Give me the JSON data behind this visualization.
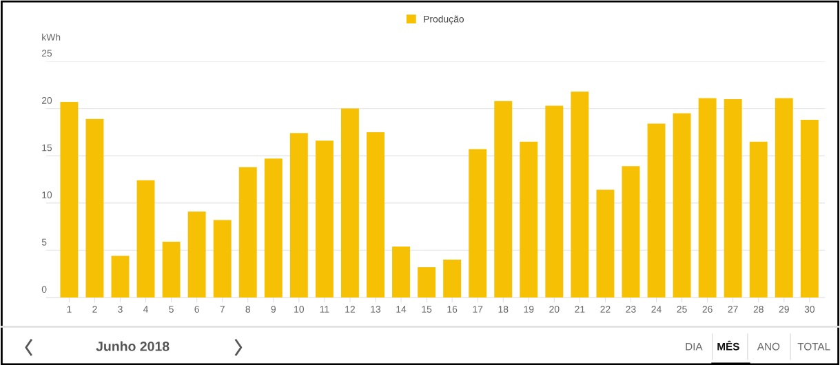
{
  "chart_data": {
    "type": "bar",
    "ylabel": "kWh",
    "categories": [
      "1",
      "2",
      "3",
      "4",
      "5",
      "6",
      "7",
      "8",
      "9",
      "10",
      "11",
      "12",
      "13",
      "14",
      "15",
      "16",
      "17",
      "18",
      "19",
      "20",
      "21",
      "22",
      "23",
      "24",
      "25",
      "26",
      "27",
      "28",
      "29",
      "30"
    ],
    "series": [
      {
        "name": "Produção",
        "color": "#f6c104",
        "values": [
          20.7,
          18.9,
          4.4,
          12.4,
          5.9,
          9.1,
          8.2,
          13.8,
          14.7,
          17.4,
          16.6,
          20.0,
          17.5,
          5.4,
          3.2,
          4.0,
          15.7,
          20.8,
          16.5,
          20.3,
          21.8,
          11.4,
          13.9,
          18.4,
          19.5,
          21.1,
          21.0,
          16.5,
          21.1,
          18.8
        ]
      }
    ],
    "ylim": [
      0,
      25
    ],
    "yticks": [
      0,
      5,
      10,
      15,
      20,
      25
    ],
    "grid": "y",
    "legend": "top",
    "annotations": [
      "Junho 2018",
      "DIA",
      "MÊS",
      "ANO",
      "TOTAL"
    ]
  }
}
